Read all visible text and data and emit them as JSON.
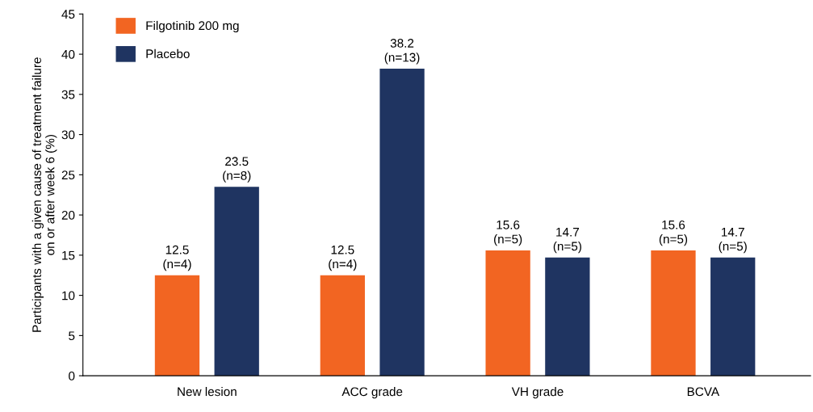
{
  "chart_data": {
    "type": "bar",
    "ylabel": "Participants with a given cause of treatment failure\non or after week 6 (%)",
    "categories": [
      "New lesion",
      "ACC grade",
      "VH grade",
      "BCVA"
    ],
    "series": [
      {
        "name": "Filgotinib 200 mg",
        "color": "#f26522",
        "values": [
          12.5,
          12.5,
          15.6,
          15.6
        ],
        "value_labels": [
          "12.5\n(n=4)",
          "12.5\n(n=4)",
          "15.6\n(n=5)",
          "15.6\n(n=5)"
        ]
      },
      {
        "name": "Placebo",
        "color": "#1f3461",
        "values": [
          23.5,
          38.2,
          14.7,
          14.7
        ],
        "value_labels": [
          "23.5\n(n=8)",
          "38.2\n(n=13)",
          "14.7\n(n=5)",
          "14.7\n(n=5)"
        ]
      }
    ],
    "ylim": [
      0,
      45
    ],
    "yticks": [
      0,
      5,
      10,
      15,
      20,
      25,
      30,
      35,
      40,
      45
    ],
    "grid": false,
    "legend": "top left"
  }
}
